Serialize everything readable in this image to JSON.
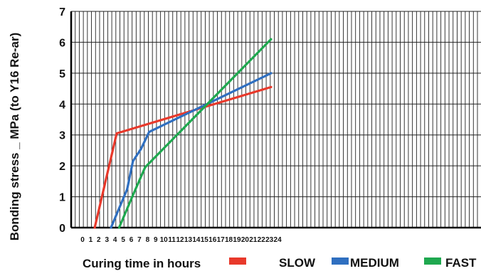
{
  "chart_data": {
    "type": "line",
    "title": "",
    "xlabel": "Curing time in hours",
    "ylabel": "Bonding stress _ MPa (to Y16 Re-ar)",
    "xlim": [
      0,
      24
    ],
    "ylim": [
      0,
      7
    ],
    "x_ticks": [
      "0",
      "1",
      "2",
      "3",
      "4",
      "5",
      "6",
      "7",
      "8",
      "9",
      "10",
      "11",
      "12",
      "13",
      "14",
      "15",
      "16",
      "17",
      "18",
      "19",
      "20",
      "21",
      "22",
      "23",
      "24"
    ],
    "y_ticks": [
      "0",
      "1",
      "2",
      "3",
      "4",
      "5",
      "6",
      "7"
    ],
    "grid": true,
    "legend_position": "bottom",
    "series": [
      {
        "name": "SLOW",
        "color": "#e8392b",
        "points": [
          [
            1.5,
            0
          ],
          [
            4.2,
            3.05
          ],
          [
            23.2,
            4.55
          ]
        ]
      },
      {
        "name": "MEDIUM",
        "color": "#2f6fc0",
        "points": [
          [
            3.5,
            0
          ],
          [
            5.5,
            1.25
          ],
          [
            6.2,
            2.15
          ],
          [
            7.2,
            2.55
          ],
          [
            8.2,
            3.1
          ],
          [
            23.2,
            5.0
          ]
        ]
      },
      {
        "name": "FAST",
        "color": "#1fa84f",
        "points": [
          [
            4.5,
            0
          ],
          [
            6.2,
            1.05
          ],
          [
            7.7,
            1.95
          ],
          [
            23.2,
            6.1
          ]
        ]
      }
    ]
  }
}
